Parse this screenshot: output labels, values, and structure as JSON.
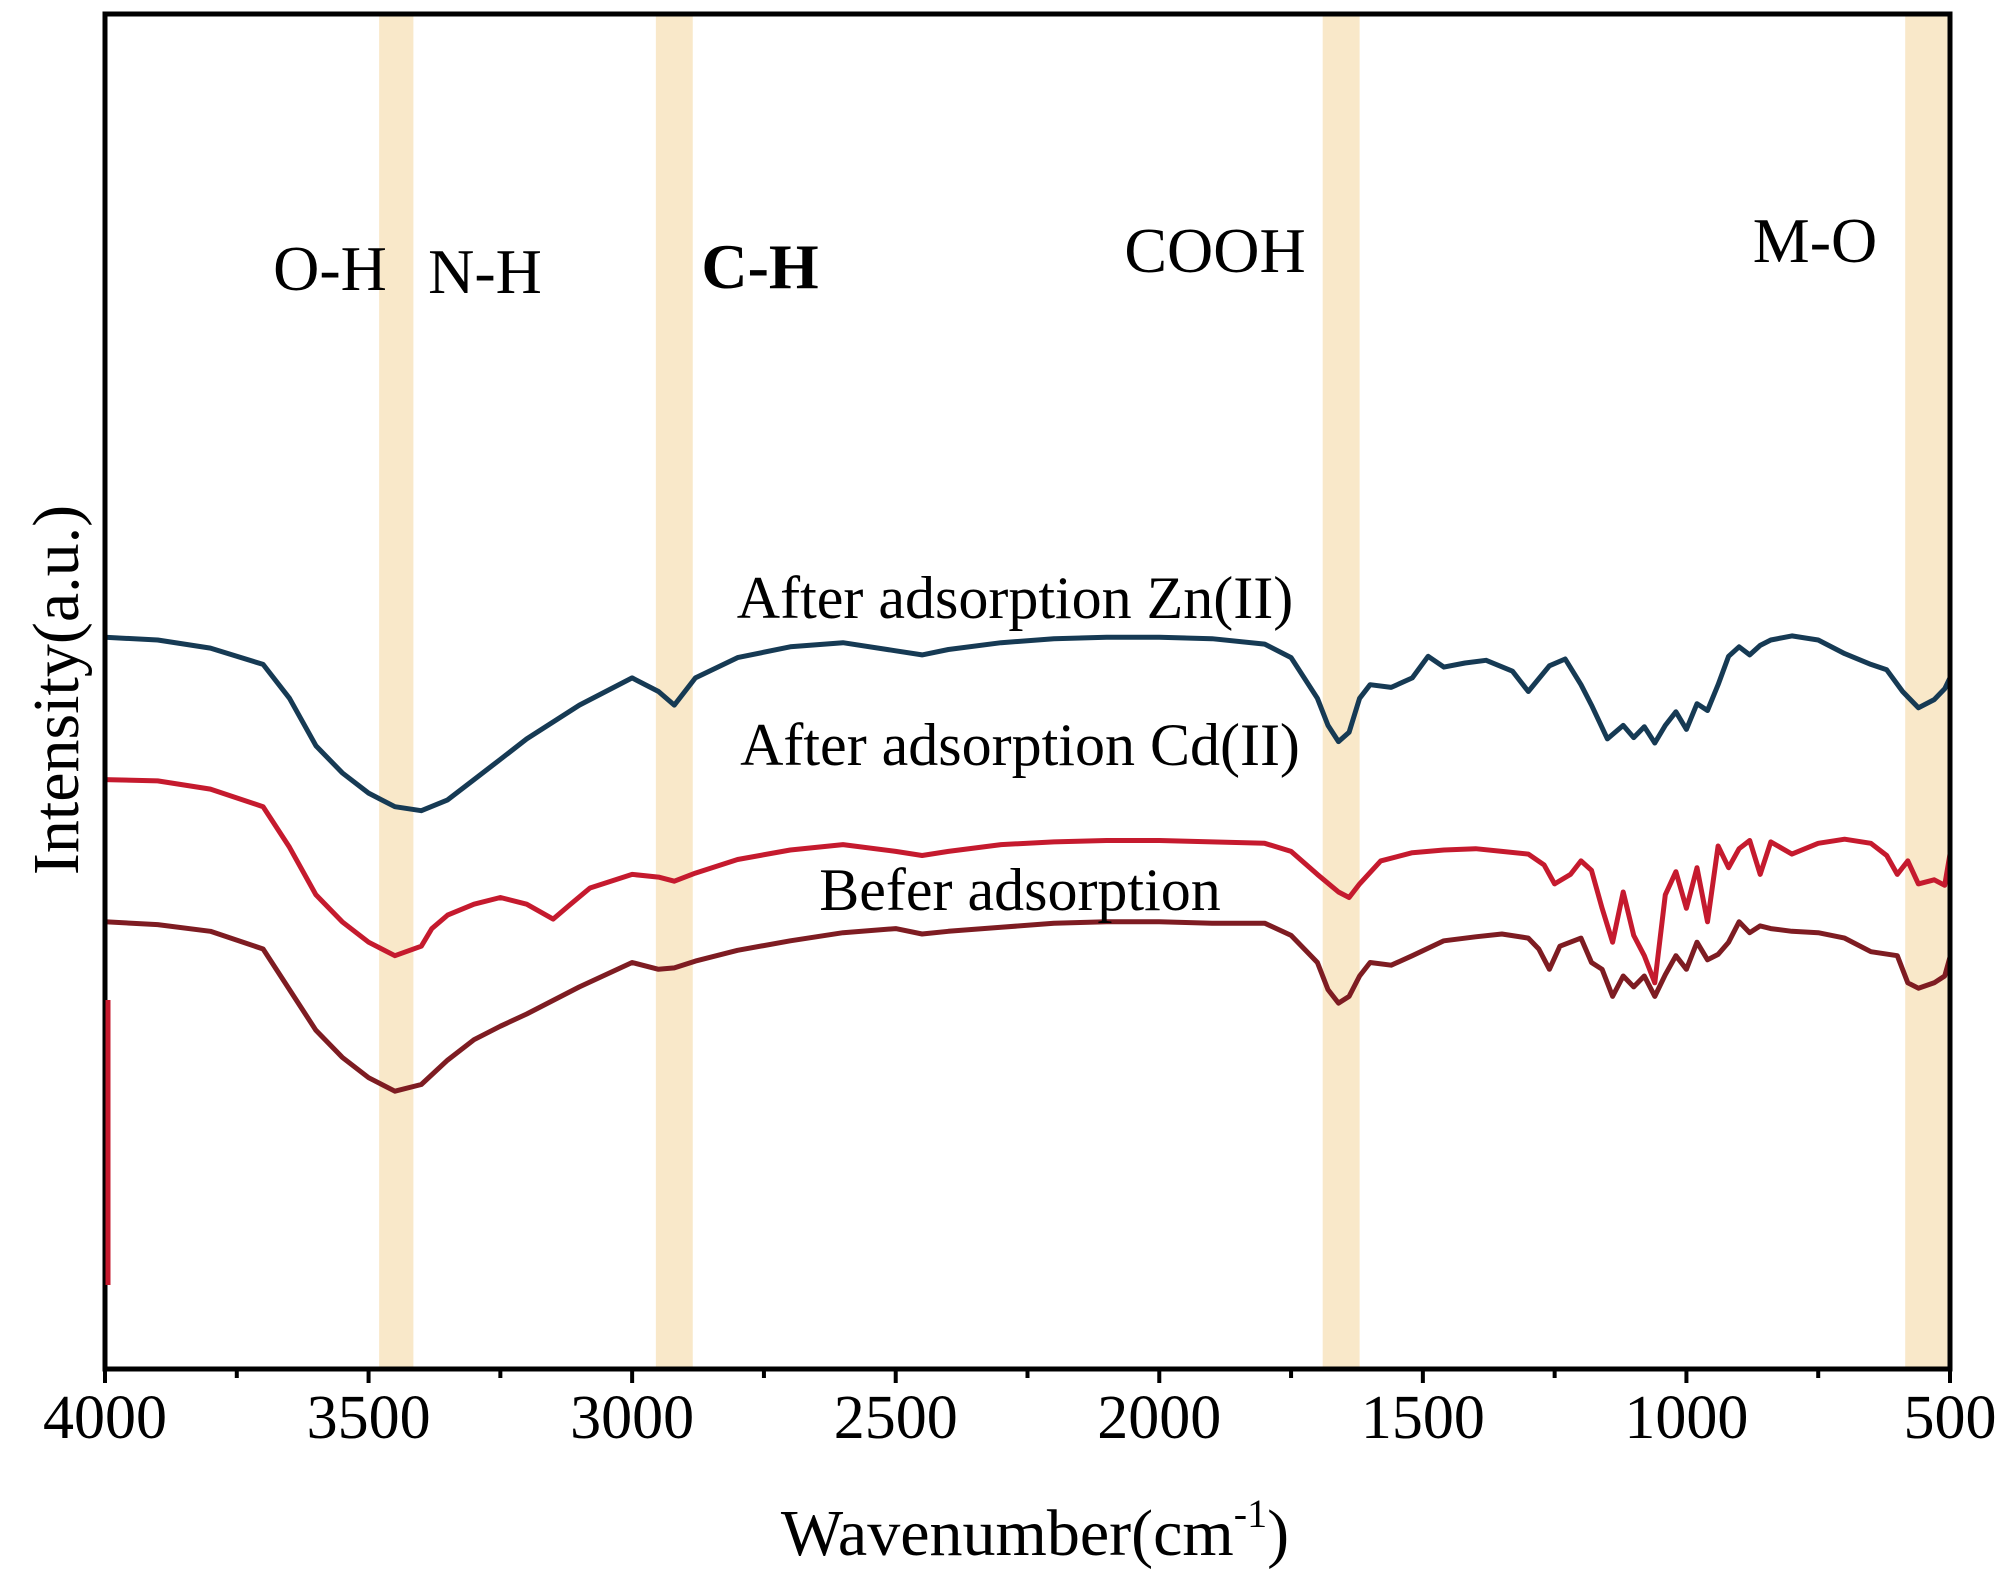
{
  "chart_data": {
    "type": "line",
    "title": "",
    "xlabel": "Wavenumber(cm",
    "xlabel_sup": "-1",
    "xlabel_close": ")",
    "ylabel": "Intensity(a.u.)",
    "xlim": [
      4000,
      500
    ],
    "ylim": [
      0,
      100
    ],
    "xticks": [
      4000,
      3500,
      3000,
      2500,
      2000,
      1500,
      1000,
      500
    ],
    "highlight_bands": [
      {
        "label": "O-H",
        "from": 3480,
        "to": 3415
      },
      {
        "label": "N-H",
        "from": null,
        "to": null
      },
      {
        "label": "C-H",
        "from": 2955,
        "to": 2885
      },
      {
        "label": "COOH",
        "from": 1690,
        "to": 1620
      },
      {
        "label": "M-O",
        "from": 585,
        "to": 505
      }
    ],
    "band_color": "#f8e4c0",
    "series": [
      {
        "name": "After adsorption Zn(II)",
        "color": "#163a54",
        "x": [
          4000,
          3900,
          3800,
          3700,
          3650,
          3600,
          3550,
          3500,
          3450,
          3400,
          3350,
          3300,
          3250,
          3200,
          3100,
          3000,
          2950,
          2920,
          2880,
          2800,
          2700,
          2600,
          2500,
          2450,
          2400,
          2300,
          2200,
          2100,
          2000,
          1900,
          1800,
          1750,
          1700,
          1680,
          1660,
          1640,
          1620,
          1600,
          1560,
          1520,
          1490,
          1460,
          1420,
          1380,
          1330,
          1300,
          1260,
          1230,
          1200,
          1180,
          1150,
          1120,
          1100,
          1080,
          1060,
          1040,
          1020,
          1000,
          980,
          960,
          940,
          920,
          900,
          880,
          860,
          840,
          800,
          750,
          700,
          650,
          620,
          590,
          560,
          530,
          510,
          500
        ],
        "y": [
          54.0,
          53.8,
          53.2,
          52.0,
          49.5,
          46.0,
          44.0,
          42.5,
          41.5,
          41.2,
          42.0,
          43.5,
          45.0,
          46.5,
          49.0,
          51.0,
          50.0,
          49.0,
          51.0,
          52.5,
          53.3,
          53.6,
          53.0,
          52.7,
          53.1,
          53.6,
          53.9,
          54.0,
          54.0,
          53.9,
          53.5,
          52.5,
          49.5,
          47.5,
          46.3,
          47.0,
          49.5,
          50.5,
          50.3,
          51.0,
          52.6,
          51.8,
          52.1,
          52.3,
          51.5,
          50.0,
          51.9,
          52.4,
          50.5,
          49.0,
          46.5,
          47.5,
          46.6,
          47.4,
          46.2,
          47.5,
          48.5,
          47.2,
          49.1,
          48.6,
          50.5,
          52.6,
          53.3,
          52.7,
          53.4,
          53.8,
          54.1,
          53.8,
          52.8,
          52.0,
          51.6,
          50.0,
          48.8,
          49.4,
          50.2,
          51.0
        ]
      },
      {
        "name": "After adsorption Cd(II)",
        "color": "#c51a2e",
        "x": [
          4000,
          3900,
          3800,
          3700,
          3650,
          3600,
          3550,
          3500,
          3450,
          3400,
          3380,
          3350,
          3300,
          3250,
          3200,
          3150,
          3120,
          3080,
          3000,
          2950,
          2920,
          2880,
          2800,
          2700,
          2600,
          2500,
          2450,
          2400,
          2300,
          2200,
          2100,
          2000,
          1900,
          1800,
          1750,
          1700,
          1660,
          1640,
          1620,
          1580,
          1520,
          1460,
          1400,
          1350,
          1300,
          1270,
          1250,
          1220,
          1200,
          1180,
          1160,
          1140,
          1120,
          1100,
          1080,
          1060,
          1040,
          1020,
          1000,
          980,
          960,
          940,
          920,
          900,
          880,
          860,
          840,
          800,
          750,
          700,
          650,
          620,
          600,
          580,
          560,
          530,
          510,
          500
        ],
        "y": [
          43.5,
          43.4,
          42.8,
          41.5,
          38.5,
          35.0,
          33.0,
          31.5,
          30.5,
          31.2,
          32.5,
          33.5,
          34.3,
          34.8,
          34.3,
          33.2,
          34.2,
          35.5,
          36.5,
          36.3,
          36.0,
          36.6,
          37.6,
          38.3,
          38.7,
          38.2,
          37.9,
          38.2,
          38.7,
          38.9,
          39.0,
          39.0,
          38.9,
          38.8,
          38.2,
          36.5,
          35.2,
          34.8,
          35.8,
          37.5,
          38.1,
          38.3,
          38.4,
          38.2,
          38.0,
          37.2,
          35.8,
          36.5,
          37.5,
          36.8,
          34.0,
          31.5,
          35.2,
          32.0,
          30.5,
          28.5,
          35.0,
          36.7,
          34.0,
          37.0,
          33.0,
          38.6,
          37.0,
          38.4,
          39.0,
          36.5,
          38.9,
          38.0,
          38.8,
          39.1,
          38.8,
          37.9,
          36.5,
          37.5,
          35.8,
          36.1,
          35.7,
          38.0
        ]
      },
      {
        "name": "Befer adsorption",
        "color": "#7e1c22",
        "x": [
          4000,
          3900,
          3800,
          3700,
          3650,
          3600,
          3550,
          3500,
          3450,
          3400,
          3350,
          3300,
          3250,
          3200,
          3100,
          3000,
          2950,
          2920,
          2880,
          2800,
          2700,
          2600,
          2500,
          2450,
          2400,
          2300,
          2200,
          2100,
          2000,
          1900,
          1800,
          1750,
          1700,
          1680,
          1660,
          1640,
          1620,
          1600,
          1560,
          1520,
          1460,
          1400,
          1350,
          1300,
          1280,
          1260,
          1240,
          1200,
          1180,
          1160,
          1140,
          1120,
          1100,
          1080,
          1060,
          1040,
          1020,
          1000,
          980,
          960,
          940,
          920,
          900,
          880,
          860,
          840,
          800,
          750,
          700,
          650,
          600,
          580,
          560,
          530,
          510,
          500
        ],
        "y": [
          33.0,
          32.8,
          32.3,
          31.0,
          28.0,
          25.0,
          23.0,
          21.5,
          20.5,
          21.0,
          22.8,
          24.3,
          25.3,
          26.2,
          28.2,
          30.0,
          29.5,
          29.6,
          30.1,
          30.9,
          31.6,
          32.2,
          32.5,
          32.1,
          32.3,
          32.6,
          32.9,
          33.0,
          33.0,
          32.9,
          32.9,
          32.0,
          30.0,
          28.0,
          27.0,
          27.5,
          29.0,
          30.0,
          29.8,
          30.5,
          31.6,
          31.9,
          32.1,
          31.8,
          31.0,
          29.5,
          31.2,
          31.8,
          30.0,
          29.5,
          27.5,
          29.0,
          28.2,
          29.0,
          27.5,
          29.1,
          30.5,
          29.5,
          31.5,
          30.2,
          30.6,
          31.5,
          33.0,
          32.2,
          32.7,
          32.5,
          32.3,
          32.2,
          31.8,
          30.8,
          30.5,
          28.5,
          28.1,
          28.5,
          29.0,
          30.4
        ]
      }
    ]
  }
}
